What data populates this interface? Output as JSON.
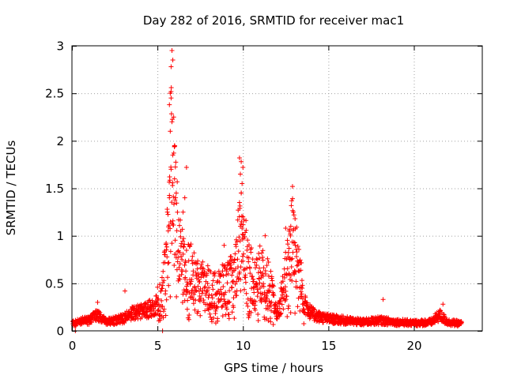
{
  "chart_data": {
    "type": "scatter",
    "title": "Day 282 of 2016, SRMTID for receiver mac1",
    "xlabel": "GPS time / hours",
    "ylabel": "SRMTID / TECUs",
    "xlim": [
      0,
      24
    ],
    "ylim": [
      0,
      3
    ],
    "xticks": [
      "0",
      "5",
      "10",
      "15",
      "20"
    ],
    "xtick_values": [
      0,
      5,
      10,
      15,
      20
    ],
    "yticks": [
      "0",
      "0.5",
      "1",
      "1.5",
      "2",
      "2.5",
      "3"
    ],
    "ytick_values": [
      0,
      0.5,
      1,
      1.5,
      2,
      2.5,
      3
    ],
    "grid": true,
    "marker": "+",
    "color": "#ff0000",
    "profile": {
      "description_note": "approximate envelope read from figure",
      "x": [
        0.0,
        0.5,
        1.0,
        1.5,
        2.0,
        2.5,
        3.0,
        3.5,
        4.0,
        4.5,
        5.0,
        5.3,
        5.6,
        5.8,
        6.0,
        6.3,
        6.6,
        7.0,
        7.5,
        8.0,
        8.5,
        9.0,
        9.5,
        9.8,
        10.0,
        10.3,
        10.7,
        11.0,
        11.5,
        12.0,
        12.3,
        12.6,
        12.9,
        13.2,
        13.5,
        14.0,
        14.5,
        15.0,
        16.0,
        17.0,
        18.0,
        19.0,
        20.0,
        21.0,
        21.5,
        22.0,
        22.8
      ],
      "y": [
        0.08,
        0.11,
        0.12,
        0.18,
        0.1,
        0.12,
        0.14,
        0.2,
        0.22,
        0.25,
        0.3,
        0.35,
        0.9,
        1.6,
        1.2,
        0.8,
        0.6,
        0.55,
        0.45,
        0.42,
        0.38,
        0.45,
        0.5,
        0.9,
        1.0,
        0.6,
        0.45,
        0.55,
        0.45,
        0.2,
        0.35,
        0.6,
        0.9,
        0.7,
        0.35,
        0.2,
        0.16,
        0.14,
        0.12,
        0.1,
        0.12,
        0.1,
        0.09,
        0.1,
        0.18,
        0.1,
        0.08
      ]
    },
    "highlight_points": [
      {
        "x": 5.85,
        "y": 2.95
      },
      {
        "x": 5.9,
        "y": 2.85
      },
      {
        "x": 5.8,
        "y": 2.78
      },
      {
        "x": 5.75,
        "y": 2.5
      },
      {
        "x": 5.8,
        "y": 2.45
      },
      {
        "x": 5.7,
        "y": 2.38
      },
      {
        "x": 5.95,
        "y": 2.25
      },
      {
        "x": 5.85,
        "y": 2.2
      },
      {
        "x": 5.75,
        "y": 2.1
      },
      {
        "x": 6.0,
        "y": 1.95
      },
      {
        "x": 5.9,
        "y": 1.85
      },
      {
        "x": 5.8,
        "y": 1.7
      },
      {
        "x": 6.0,
        "y": 1.6
      },
      {
        "x": 6.1,
        "y": 1.45
      },
      {
        "x": 5.7,
        "y": 1.4
      },
      {
        "x": 6.7,
        "y": 1.72
      },
      {
        "x": 6.6,
        "y": 1.4
      },
      {
        "x": 6.5,
        "y": 1.25
      },
      {
        "x": 9.8,
        "y": 1.82
      },
      {
        "x": 9.9,
        "y": 1.78
      },
      {
        "x": 10.0,
        "y": 1.72
      },
      {
        "x": 9.85,
        "y": 1.65
      },
      {
        "x": 9.95,
        "y": 1.55
      },
      {
        "x": 9.9,
        "y": 1.45
      },
      {
        "x": 9.8,
        "y": 1.35
      },
      {
        "x": 10.0,
        "y": 1.2
      },
      {
        "x": 9.85,
        "y": 1.1
      },
      {
        "x": 12.9,
        "y": 1.52
      },
      {
        "x": 12.95,
        "y": 1.25
      },
      {
        "x": 13.05,
        "y": 1.18
      },
      {
        "x": 12.8,
        "y": 1.1
      },
      {
        "x": 12.7,
        "y": 1.05
      },
      {
        "x": 12.5,
        "y": 1.08
      },
      {
        "x": 11.3,
        "y": 1.0
      },
      {
        "x": 11.1,
        "y": 0.82
      },
      {
        "x": 8.9,
        "y": 0.9
      },
      {
        "x": 18.2,
        "y": 0.33
      },
      {
        "x": 21.7,
        "y": 0.28
      },
      {
        "x": 3.1,
        "y": 0.42
      },
      {
        "x": 1.5,
        "y": 0.3
      },
      {
        "x": 0.2,
        "y": 0.0
      },
      {
        "x": 5.3,
        "y": 0.0
      }
    ]
  }
}
